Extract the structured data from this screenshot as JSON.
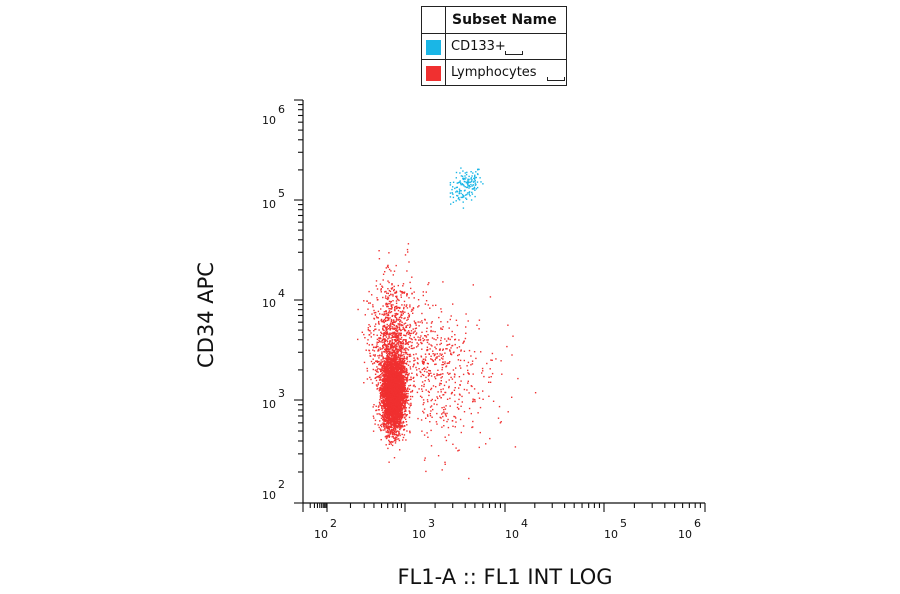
{
  "legend": {
    "header": "Subset Name",
    "items": [
      {
        "label": "CD133+",
        "color": "#1ab6e6"
      },
      {
        "label": "Lymphocytes",
        "color": "#f03030"
      }
    ]
  },
  "chart_data": {
    "type": "scatter",
    "xlabel": "FL1-A :: FL1 INT LOG",
    "ylabel": "CD34 APC",
    "x_scale": "log",
    "y_scale": "log",
    "xlim": [
      10,
      1000000
    ],
    "ylim": [
      100,
      1000000
    ],
    "x_ticks": [
      {
        "base": "10",
        "exp": "2"
      },
      {
        "base": "10",
        "exp": "3"
      },
      {
        "base": "10",
        "exp": "4"
      },
      {
        "base": "10",
        "exp": "5"
      },
      {
        "base": "10",
        "exp": "6"
      }
    ],
    "y_ticks": [
      {
        "base": "10",
        "exp": "2"
      },
      {
        "base": "10",
        "exp": "3"
      },
      {
        "base": "10",
        "exp": "4"
      },
      {
        "base": "10",
        "exp": "5"
      },
      {
        "base": "10",
        "exp": "6"
      }
    ],
    "grid": false,
    "legend_position": "top-center",
    "populations": [
      {
        "name": "CD133+",
        "color": "#1ab6e6",
        "approx_events": 150,
        "center": {
          "x": 4000,
          "y": 140000
        },
        "x_range": [
          2800,
          8500
        ],
        "y_range": [
          80000,
          250000
        ]
      },
      {
        "name": "Lymphocytes",
        "color": "#f03030",
        "approx_events": 6000,
        "center": {
          "x": 700,
          "y": 1200
        },
        "x_range": [
          150,
          30000
        ],
        "y_range": [
          120,
          200000
        ]
      }
    ]
  }
}
